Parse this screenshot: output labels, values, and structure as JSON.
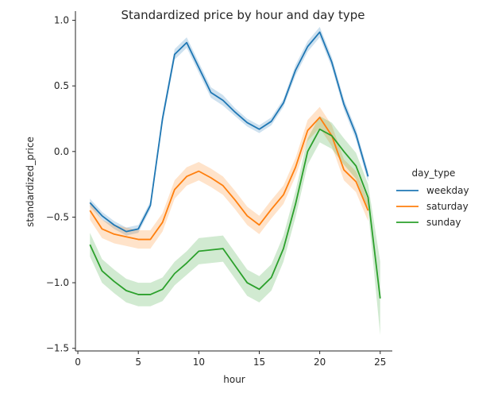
{
  "chart_data": {
    "type": "line",
    "title": "Standardized price by hour and day type",
    "xlabel": "hour",
    "ylabel": "standardized_price",
    "xlim": [
      -0.2,
      26.0
    ],
    "ylim": [
      -1.52,
      1.07
    ],
    "xticks": [
      0,
      5,
      10,
      15,
      20,
      25
    ],
    "yticks": [
      -1.5,
      -1.0,
      -0.5,
      0.0,
      0.5,
      1.0
    ],
    "xtick_labels": [
      "0",
      "5",
      "10",
      "15",
      "20",
      "25"
    ],
    "ytick_labels": [
      "−1.5",
      "−1.0",
      "−0.5",
      "0.0",
      "0.5",
      "1.0"
    ],
    "grid": false,
    "confidence_band": true,
    "legend": {
      "title": "day_type",
      "placement": "right-outside"
    },
    "series": [
      {
        "name": "weekday",
        "color": "#1f77b4",
        "x": [
          1,
          2,
          3,
          4,
          5,
          6,
          7,
          8,
          9,
          10,
          11,
          12,
          13,
          14,
          15,
          16,
          17,
          18,
          19,
          20,
          21,
          22,
          23,
          24
        ],
        "y": [
          -0.39,
          -0.49,
          -0.56,
          -0.61,
          -0.59,
          -0.41,
          0.25,
          0.74,
          0.83,
          0.64,
          0.45,
          0.39,
          0.3,
          0.22,
          0.17,
          0.23,
          0.37,
          0.62,
          0.8,
          0.91,
          0.68,
          0.36,
          0.13,
          -0.19
        ],
        "band": [
          0.03,
          0.03,
          0.03,
          0.03,
          0.03,
          0.03,
          0.04,
          0.04,
          0.04,
          0.04,
          0.04,
          0.04,
          0.03,
          0.03,
          0.03,
          0.03,
          0.03,
          0.04,
          0.04,
          0.04,
          0.04,
          0.04,
          0.04,
          0.04
        ]
      },
      {
        "name": "saturday",
        "color": "#ff7f0e",
        "x": [
          1,
          2,
          3,
          4,
          5,
          6,
          7,
          8,
          9,
          10,
          11,
          12,
          13,
          14,
          15,
          16,
          17,
          18,
          19,
          20,
          21,
          22,
          23,
          24
        ],
        "y": [
          -0.45,
          -0.59,
          -0.63,
          -0.65,
          -0.67,
          -0.67,
          -0.54,
          -0.29,
          -0.19,
          -0.15,
          -0.2,
          -0.26,
          -0.37,
          -0.49,
          -0.56,
          -0.44,
          -0.33,
          -0.12,
          0.16,
          0.26,
          0.12,
          -0.14,
          -0.23,
          -0.45
        ],
        "band": [
          0.07,
          0.07,
          0.07,
          0.07,
          0.07,
          0.07,
          0.07,
          0.07,
          0.07,
          0.07,
          0.07,
          0.07,
          0.07,
          0.07,
          0.07,
          0.07,
          0.07,
          0.07,
          0.08,
          0.08,
          0.08,
          0.08,
          0.08,
          0.08
        ]
      },
      {
        "name": "sunday",
        "color": "#2ca02c",
        "x": [
          1,
          2,
          3,
          4,
          5,
          6,
          7,
          8,
          9,
          10,
          11,
          12,
          13,
          14,
          15,
          16,
          17,
          18,
          19,
          20,
          21,
          22,
          23,
          24,
          25
        ],
        "y": [
          -0.71,
          -0.91,
          -0.99,
          -1.06,
          -1.09,
          -1.09,
          -1.05,
          -0.93,
          -0.85,
          -0.76,
          -0.75,
          -0.74,
          -0.87,
          -1.0,
          -1.05,
          -0.96,
          -0.74,
          -0.4,
          0.0,
          0.17,
          0.12,
          0.0,
          -0.11,
          -0.35,
          -1.12
        ],
        "band": [
          0.09,
          0.09,
          0.09,
          0.09,
          0.09,
          0.09,
          0.09,
          0.09,
          0.09,
          0.1,
          0.1,
          0.1,
          0.1,
          0.1,
          0.1,
          0.1,
          0.1,
          0.1,
          0.1,
          0.1,
          0.1,
          0.1,
          0.1,
          0.1,
          0.28
        ]
      }
    ]
  }
}
